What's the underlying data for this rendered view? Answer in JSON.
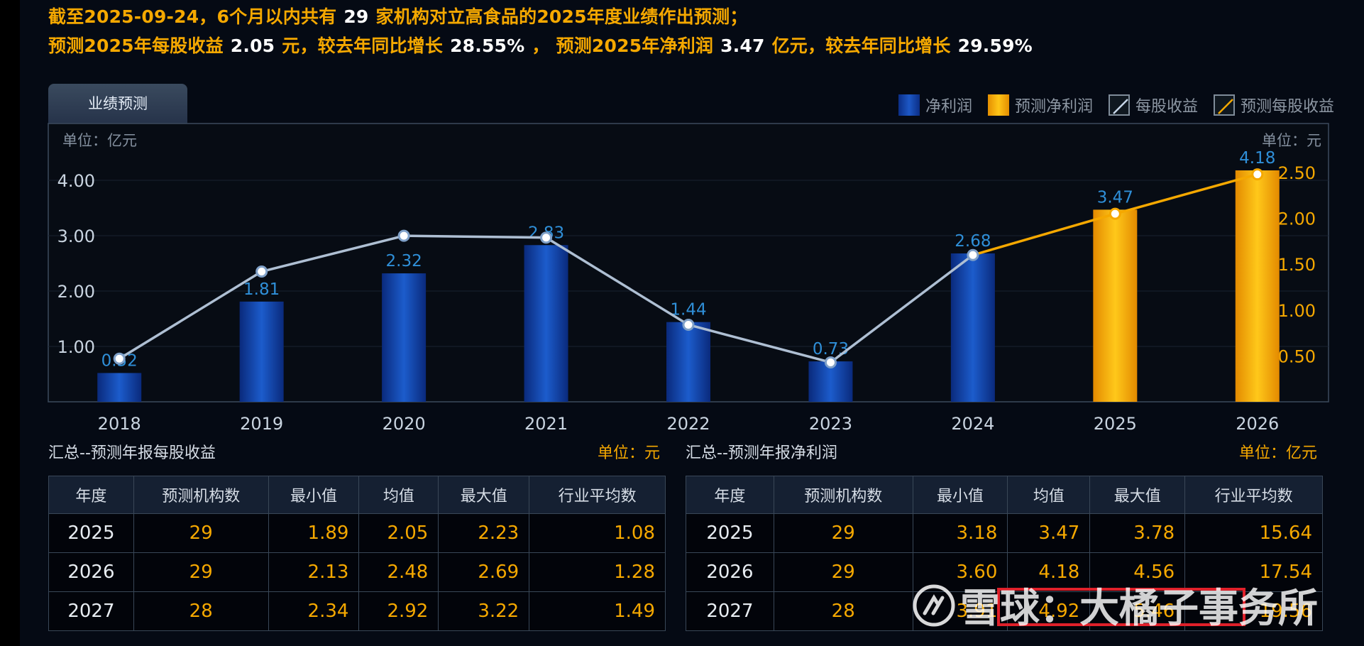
{
  "header": {
    "line1": {
      "p1": "截至2025-09-24，6个月以内共有",
      "count": "29",
      "p2": "家机构对立高食品的2025年度业绩作出预测；"
    },
    "line2": {
      "p1": "预测2025年每股收益",
      "eps": "2.05",
      "p2": "元，较去年同比增长",
      "eps_growth": "28.55%",
      "p3": "，  预测2025年净利润",
      "np": "3.47",
      "p4": "亿元，较去年同比增长",
      "np_growth": "29.59%"
    }
  },
  "tab_label": "业绩预测",
  "legend": [
    {
      "label": "净利润",
      "icon": "net-profit-bar-swatch"
    },
    {
      "label": "预测净利润",
      "icon": "forecast-net-profit-bar-swatch"
    },
    {
      "label": "每股收益",
      "icon": "eps-line-swatch"
    },
    {
      "label": "预测每股收益",
      "icon": "forecast-eps-line-swatch"
    }
  ],
  "chart_data": {
    "type": "bar+line",
    "left_unit": "单位：亿元",
    "right_unit": "单位：元",
    "left_ticks": [
      "1.00",
      "2.00",
      "3.00",
      "4.00"
    ],
    "right_ticks": [
      "0.50",
      "1.00",
      "1.50",
      "2.00",
      "2.50"
    ],
    "left_ylim": [
      0,
      4.18
    ],
    "right_ylim": [
      0,
      2.5
    ],
    "categories": [
      "2018",
      "2019",
      "2020",
      "2021",
      "2022",
      "2023",
      "2024",
      "2025",
      "2026"
    ],
    "net_profit": [
      0.52,
      1.81,
      2.32,
      2.83,
      1.44,
      0.73,
      2.68,
      3.47,
      4.18
    ],
    "net_profit_labels": [
      "0.52",
      "1.81",
      "2.32",
      "2.83",
      "1.44",
      "0.73",
      "2.68",
      "3.47",
      "4.18"
    ],
    "forecast_from_index": 7,
    "eps": [
      0.47,
      1.42,
      1.81,
      1.79,
      0.84,
      0.43,
      1.6,
      2.05,
      2.48
    ],
    "grid": true,
    "colors": {
      "actual_bar": "#1a50b8",
      "forecast_bar": "#ffb300",
      "eps_line": "#aebfd3",
      "forecast_eps_line": "#f5a800",
      "bar_label": "#2f8fd8",
      "axis_tick": "#c9d4e0",
      "right_axis_tick": "#f5a800"
    }
  },
  "eps_section": {
    "title": "汇总--预测年报每股收益",
    "unit": "单位：元",
    "headers": [
      "年度",
      "预测机构数",
      "最小值",
      "均值",
      "最大值",
      "行业平均数"
    ],
    "rows": [
      [
        "2025",
        "29",
        "1.89",
        "2.05",
        "2.23",
        "1.08"
      ],
      [
        "2026",
        "29",
        "2.13",
        "2.48",
        "2.69",
        "1.28"
      ],
      [
        "2027",
        "28",
        "2.34",
        "2.92",
        "3.22",
        "1.49"
      ]
    ]
  },
  "np_section": {
    "title": "汇总--预测年报净利润",
    "unit": "单位：亿元",
    "headers": [
      "年度",
      "预测机构数",
      "最小值",
      "均值",
      "最大值",
      "行业平均数"
    ],
    "rows": [
      [
        "2025",
        "29",
        "3.18",
        "3.47",
        "3.78",
        "15.64"
      ],
      [
        "2026",
        "29",
        "3.60",
        "4.18",
        "4.56",
        "17.54"
      ],
      [
        "2027",
        "28",
        "3.91",
        "4.92",
        "5.46",
        "19.56"
      ]
    ]
  },
  "watermark": "雪球：大橘子事务所"
}
